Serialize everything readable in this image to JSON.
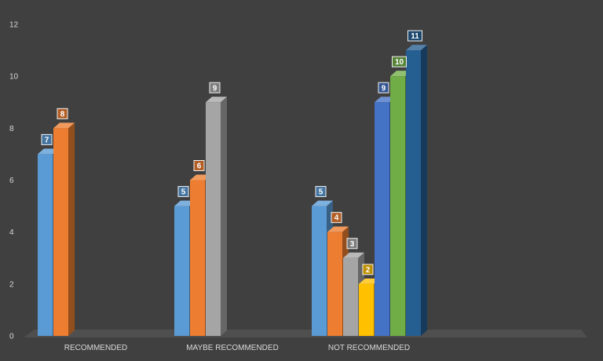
{
  "chart_data": {
    "type": "bar",
    "style": "3d-clustered-column",
    "categories": [
      "RECOMMENDED",
      "MAYBE RECOMMENDED",
      "NOT RECOMMENDED"
    ],
    "groups": [
      {
        "category": "RECOMMENDED",
        "values": [
          7,
          8
        ]
      },
      {
        "category": "MAYBE RECOMMENDED",
        "values": [
          5,
          6,
          9
        ]
      },
      {
        "category": "NOT RECOMMENDED",
        "values": [
          5,
          4,
          3,
          2,
          9,
          10,
          11
        ]
      }
    ],
    "bar_colors": [
      "#5b9bd5",
      "#ed7d31",
      "#a5a5a5",
      "#ffc000",
      "#4472c4",
      "#70ad47",
      "#255e91"
    ],
    "y_ticks": [
      "0",
      "2",
      "4",
      "6",
      "8",
      "10",
      "12"
    ],
    "ylim": [
      0,
      12
    ],
    "title": "",
    "xlabel": "",
    "ylabel": "",
    "grid": false,
    "legend": "none",
    "data_labels": true,
    "background_color": "#404040",
    "floor_color": "#4f4f4f"
  }
}
